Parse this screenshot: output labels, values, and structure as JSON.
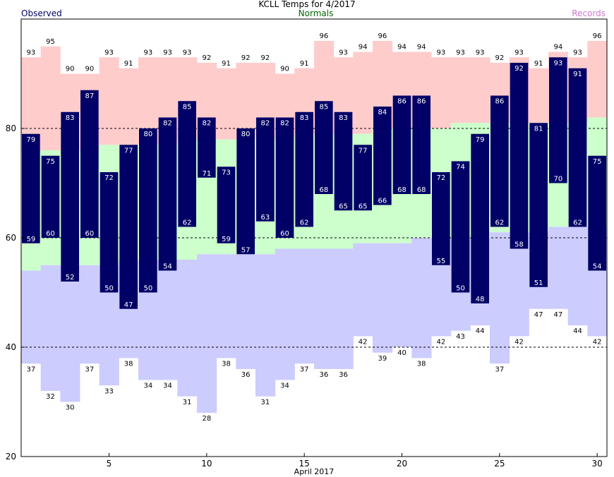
{
  "title": "KCLL Temps for 4/2017",
  "legend": {
    "observed": "Observed",
    "normals": "Normals",
    "records": "Records"
  },
  "colors": {
    "record_high": "#ffcccc",
    "normal_band": "#ccffcc",
    "record_low": "#ccccff",
    "observed": "#000066",
    "observed_label": "#000066",
    "normals_label": "#006600",
    "records_label": "#cc77cc"
  },
  "chart_data": {
    "type": "bar",
    "xlabel": "April 2017",
    "ylim": [
      20,
      100
    ],
    "yticks": [
      20,
      40,
      60,
      80
    ],
    "xticks": [
      5,
      10,
      15,
      20,
      25,
      30
    ],
    "dashed_lines": [
      40,
      60,
      80
    ],
    "days": [
      1,
      2,
      3,
      4,
      5,
      6,
      7,
      8,
      9,
      10,
      11,
      12,
      13,
      14,
      15,
      16,
      17,
      18,
      19,
      20,
      21,
      22,
      23,
      24,
      25,
      26,
      27,
      28,
      29,
      30
    ],
    "record_high": [
      93,
      95,
      90,
      90,
      93,
      91,
      93,
      93,
      93,
      92,
      91,
      92,
      92,
      90,
      91,
      96,
      93,
      94,
      96,
      94,
      94,
      93,
      93,
      93,
      92,
      93,
      91,
      94,
      93,
      96
    ],
    "record_low": [
      37,
      32,
      30,
      37,
      33,
      38,
      34,
      34,
      31,
      28,
      38,
      36,
      31,
      34,
      37,
      36,
      36,
      42,
      39,
      40,
      38,
      42,
      43,
      44,
      37,
      42,
      47,
      47,
      44,
      42
    ],
    "normal_high": [
      76,
      76,
      76,
      76,
      77,
      77,
      77,
      77,
      78,
      78,
      78,
      78,
      78,
      78,
      79,
      79,
      79,
      79,
      80,
      80,
      80,
      80,
      81,
      81,
      81,
      81,
      81,
      81,
      81,
      82
    ],
    "normal_low": [
      54,
      55,
      55,
      55,
      55,
      56,
      56,
      56,
      56,
      57,
      57,
      57,
      57,
      58,
      58,
      58,
      58,
      59,
      59,
      59,
      60,
      60,
      60,
      60,
      61,
      61,
      61,
      62,
      62,
      62
    ],
    "series": [
      {
        "name": "Observed High",
        "values": [
          79,
          75,
          83,
          87,
          72,
          77,
          80,
          82,
          85,
          82,
          73,
          80,
          82,
          82,
          83,
          85,
          83,
          77,
          84,
          86,
          86,
          72,
          74,
          79,
          86,
          92,
          81,
          93,
          91,
          75
        ]
      },
      {
        "name": "Observed Low",
        "values": [
          59,
          60,
          52,
          60,
          50,
          47,
          50,
          54,
          62,
          71,
          59,
          57,
          63,
          60,
          62,
          68,
          65,
          65,
          66,
          68,
          68,
          55,
          50,
          48,
          62,
          58,
          51,
          70,
          62,
          54
        ]
      }
    ]
  }
}
